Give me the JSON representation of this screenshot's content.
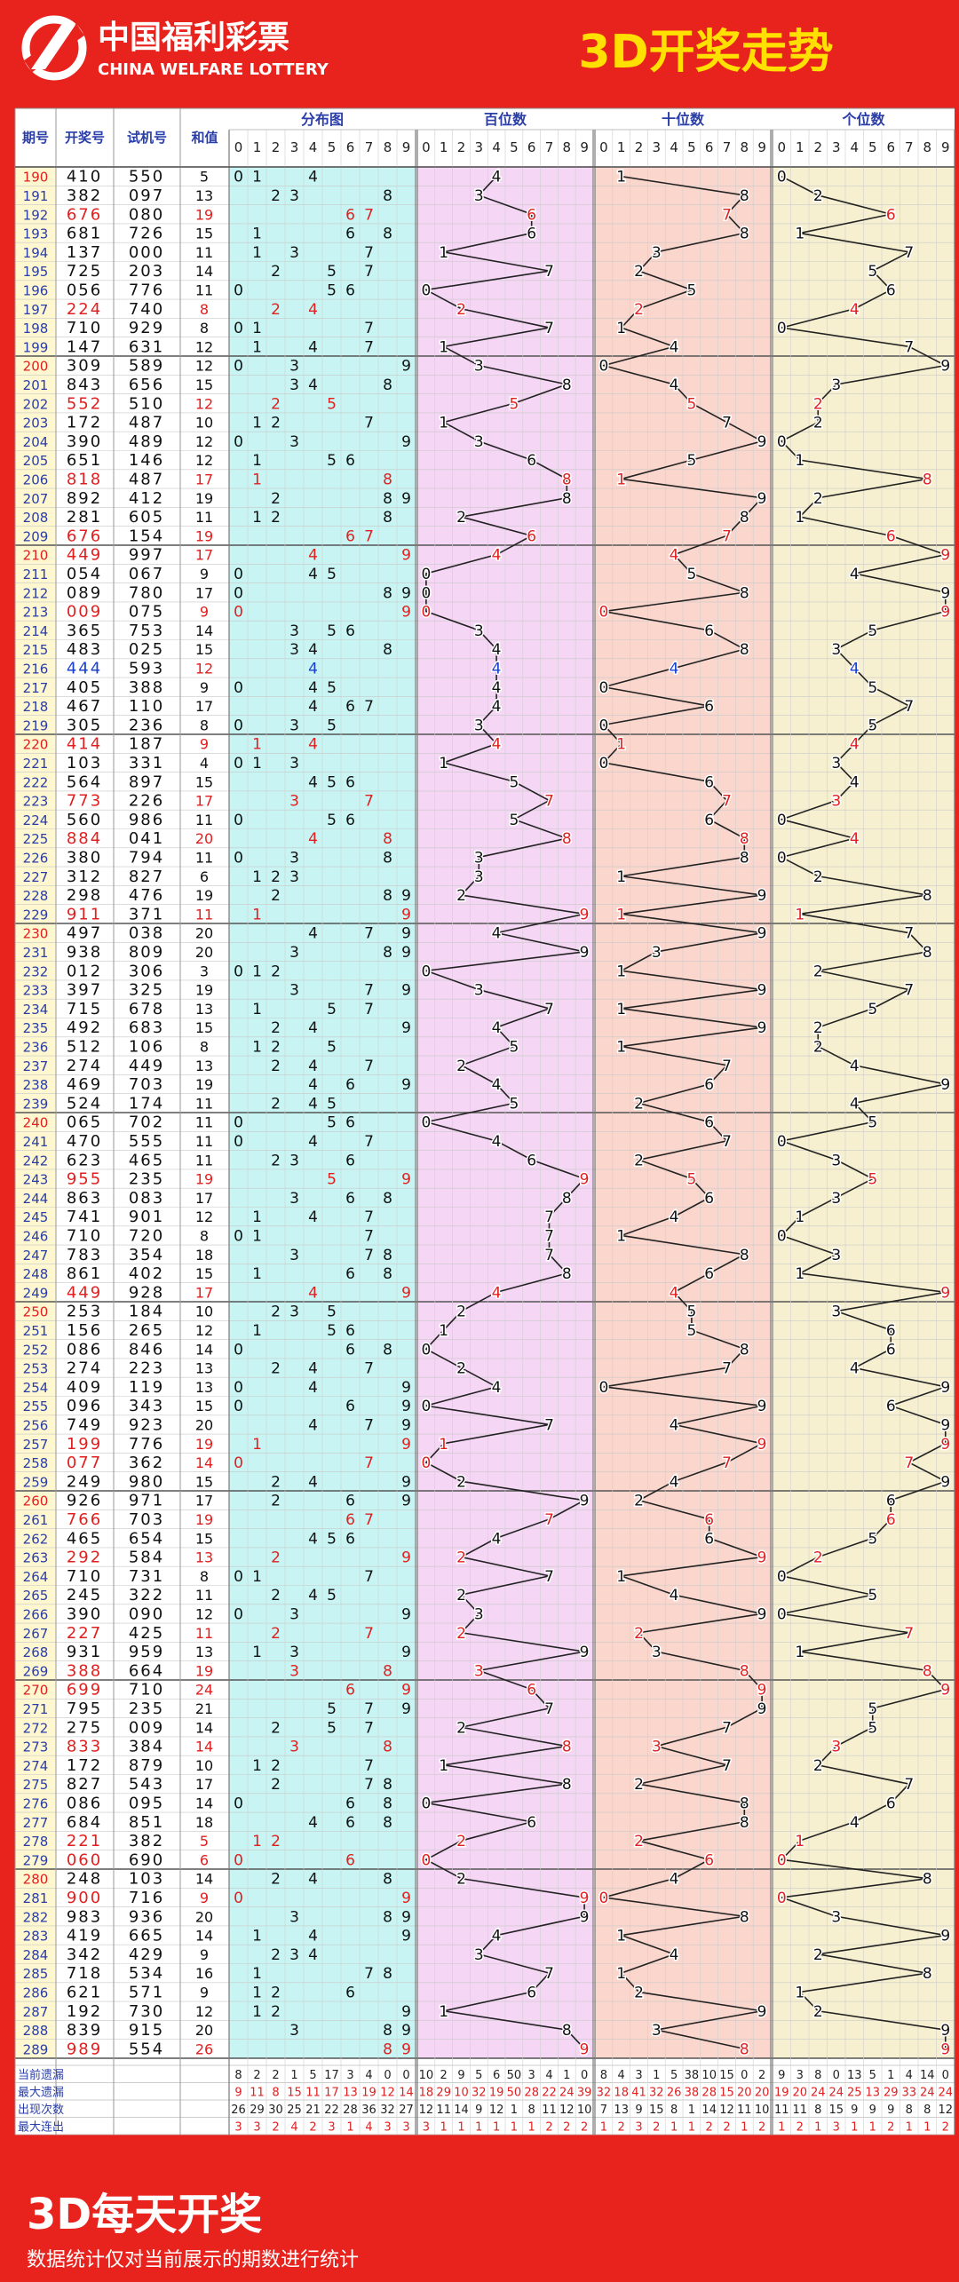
{
  "header": {
    "logo_cn": "中国福利彩票",
    "logo_en": "CHINA WELFARE LOTTERY",
    "title": "3D开奖走势"
  },
  "columns": {
    "period": "期号",
    "draw": "开奖号",
    "test": "试机号",
    "sum": "和值",
    "dist": "分布图",
    "hundreds": "百位数",
    "tens": "十位数",
    "units": "个位数"
  },
  "digits": [
    "0",
    "1",
    "2",
    "3",
    "4",
    "5",
    "6",
    "7",
    "8",
    "9"
  ],
  "colors": {
    "bg_red": "#e8231d",
    "title_yellow": "#ffe000",
    "dist_bg": "#c8f5f3",
    "hundreds_bg": "#f5d6f5",
    "tens_bg": "#fbd6cc",
    "units_bg": "#f7f0d0",
    "left_bg": "#ffffff",
    "repeat_red": "#e02020",
    "blue": "#1a3fcf"
  },
  "chart_data": {
    "type": "table",
    "rows": [
      [
        "190",
        "410",
        "550",
        "5"
      ],
      [
        "191",
        "382",
        "097",
        "13"
      ],
      [
        "192",
        "676",
        "080",
        "19"
      ],
      [
        "193",
        "681",
        "726",
        "15"
      ],
      [
        "194",
        "137",
        "000",
        "11"
      ],
      [
        "195",
        "725",
        "203",
        "14"
      ],
      [
        "196",
        "056",
        "776",
        "11"
      ],
      [
        "197",
        "224",
        "740",
        "8"
      ],
      [
        "198",
        "710",
        "929",
        "8"
      ],
      [
        "199",
        "147",
        "631",
        "12"
      ],
      [
        "200",
        "309",
        "589",
        "12"
      ],
      [
        "201",
        "843",
        "656",
        "15"
      ],
      [
        "202",
        "552",
        "510",
        "12"
      ],
      [
        "203",
        "172",
        "487",
        "10"
      ],
      [
        "204",
        "390",
        "489",
        "12"
      ],
      [
        "205",
        "651",
        "146",
        "12"
      ],
      [
        "206",
        "818",
        "487",
        "17"
      ],
      [
        "207",
        "892",
        "412",
        "19"
      ],
      [
        "208",
        "281",
        "605",
        "11"
      ],
      [
        "209",
        "676",
        "154",
        "19"
      ],
      [
        "210",
        "449",
        "997",
        "17"
      ],
      [
        "211",
        "054",
        "067",
        "9"
      ],
      [
        "212",
        "089",
        "780",
        "17"
      ],
      [
        "213",
        "009",
        "075",
        "9"
      ],
      [
        "214",
        "365",
        "753",
        "14"
      ],
      [
        "215",
        "483",
        "025",
        "15"
      ],
      [
        "216",
        "444",
        "593",
        "12"
      ],
      [
        "217",
        "405",
        "388",
        "9"
      ],
      [
        "218",
        "467",
        "110",
        "17"
      ],
      [
        "219",
        "305",
        "236",
        "8"
      ],
      [
        "220",
        "414",
        "187",
        "9"
      ],
      [
        "221",
        "103",
        "331",
        "4"
      ],
      [
        "222",
        "564",
        "897",
        "15"
      ],
      [
        "223",
        "773",
        "226",
        "17"
      ],
      [
        "224",
        "560",
        "986",
        "11"
      ],
      [
        "225",
        "884",
        "041",
        "20"
      ],
      [
        "226",
        "380",
        "794",
        "11"
      ],
      [
        "227",
        "312",
        "827",
        "6"
      ],
      [
        "228",
        "298",
        "476",
        "19"
      ],
      [
        "229",
        "911",
        "371",
        "11"
      ],
      [
        "230",
        "497",
        "038",
        "20"
      ],
      [
        "231",
        "938",
        "809",
        "20"
      ],
      [
        "232",
        "012",
        "306",
        "3"
      ],
      [
        "233",
        "397",
        "325",
        "19"
      ],
      [
        "234",
        "715",
        "678",
        "13"
      ],
      [
        "235",
        "492",
        "683",
        "15"
      ],
      [
        "236",
        "512",
        "106",
        "8"
      ],
      [
        "237",
        "274",
        "449",
        "13"
      ],
      [
        "238",
        "469",
        "703",
        "19"
      ],
      [
        "239",
        "524",
        "174",
        "11"
      ],
      [
        "240",
        "065",
        "702",
        "11"
      ],
      [
        "241",
        "470",
        "555",
        "11"
      ],
      [
        "242",
        "623",
        "465",
        "11"
      ],
      [
        "243",
        "955",
        "235",
        "19"
      ],
      [
        "244",
        "863",
        "083",
        "17"
      ],
      [
        "245",
        "741",
        "901",
        "12"
      ],
      [
        "246",
        "710",
        "720",
        "8"
      ],
      [
        "247",
        "783",
        "354",
        "18"
      ],
      [
        "248",
        "861",
        "402",
        "15"
      ],
      [
        "249",
        "449",
        "928",
        "17"
      ],
      [
        "250",
        "253",
        "184",
        "10"
      ],
      [
        "251",
        "156",
        "265",
        "12"
      ],
      [
        "252",
        "086",
        "846",
        "14"
      ],
      [
        "253",
        "274",
        "223",
        "13"
      ],
      [
        "254",
        "409",
        "119",
        "13"
      ],
      [
        "255",
        "096",
        "343",
        "15"
      ],
      [
        "256",
        "749",
        "923",
        "20"
      ],
      [
        "257",
        "199",
        "776",
        "19"
      ],
      [
        "258",
        "077",
        "362",
        "14"
      ],
      [
        "259",
        "249",
        "980",
        "15"
      ],
      [
        "260",
        "926",
        "971",
        "17"
      ],
      [
        "261",
        "766",
        "703",
        "19"
      ],
      [
        "262",
        "465",
        "654",
        "15"
      ],
      [
        "263",
        "292",
        "584",
        "13"
      ],
      [
        "264",
        "710",
        "731",
        "8"
      ],
      [
        "265",
        "245",
        "322",
        "11"
      ],
      [
        "266",
        "390",
        "090",
        "12"
      ],
      [
        "267",
        "227",
        "425",
        "11"
      ],
      [
        "268",
        "931",
        "959",
        "13"
      ],
      [
        "269",
        "388",
        "664",
        "19"
      ],
      [
        "270",
        "699",
        "710",
        "24"
      ],
      [
        "271",
        "795",
        "235",
        "21"
      ],
      [
        "272",
        "275",
        "009",
        "14"
      ],
      [
        "273",
        "833",
        "384",
        "14"
      ],
      [
        "274",
        "172",
        "879",
        "10"
      ],
      [
        "275",
        "827",
        "543",
        "17"
      ],
      [
        "276",
        "086",
        "095",
        "14"
      ],
      [
        "277",
        "684",
        "851",
        "18"
      ],
      [
        "278",
        "221",
        "382",
        "5"
      ],
      [
        "279",
        "060",
        "690",
        "6"
      ],
      [
        "280",
        "248",
        "103",
        "14"
      ],
      [
        "281",
        "900",
        "716",
        "9"
      ],
      [
        "282",
        "983",
        "936",
        "20"
      ],
      [
        "283",
        "419",
        "665",
        "14"
      ],
      [
        "284",
        "342",
        "429",
        "9"
      ],
      [
        "285",
        "718",
        "534",
        "16"
      ],
      [
        "286",
        "621",
        "571",
        "9"
      ],
      [
        "287",
        "192",
        "730",
        "12"
      ],
      [
        "288",
        "839",
        "915",
        "20"
      ],
      [
        "289",
        "989",
        "554",
        "26"
      ]
    ],
    "stats": {
      "labels": [
        "当前遗漏",
        "最大遗漏",
        "出现次数",
        "最大连出"
      ],
      "dist": [
        [
          "8",
          "2",
          "2",
          "1",
          "5",
          "17",
          "3",
          "4",
          "0",
          "0"
        ],
        [
          "9",
          "11",
          "8",
          "15",
          "11",
          "17",
          "13",
          "19",
          "12",
          "14"
        ],
        [
          "26",
          "29",
          "30",
          "25",
          "21",
          "22",
          "28",
          "36",
          "32",
          "27"
        ],
        [
          "3",
          "3",
          "2",
          "4",
          "2",
          "3",
          "1",
          "4",
          "3",
          "3"
        ]
      ],
      "hundreds": [
        [
          "10",
          "2",
          "9",
          "5",
          "6",
          "50",
          "3",
          "4",
          "1",
          "0"
        ],
        [
          "18",
          "29",
          "10",
          "32",
          "19",
          "50",
          "28",
          "22",
          "24",
          "39"
        ],
        [
          "12",
          "11",
          "14",
          "9",
          "12",
          "1",
          "8",
          "11",
          "12",
          "10"
        ],
        [
          "3",
          "1",
          "1",
          "1",
          "1",
          "1",
          "1",
          "2",
          "2",
          "2"
        ]
      ],
      "tens": [
        [
          "8",
          "4",
          "3",
          "1",
          "5",
          "38",
          "10",
          "15",
          "0",
          "2"
        ],
        [
          "32",
          "18",
          "41",
          "32",
          "26",
          "38",
          "28",
          "15",
          "20",
          "20"
        ],
        [
          "7",
          "13",
          "9",
          "15",
          "8",
          "1",
          "14",
          "12",
          "11",
          "10"
        ],
        [
          "1",
          "2",
          "3",
          "2",
          "1",
          "1",
          "2",
          "2",
          "1",
          "2"
        ]
      ],
      "units": [
        [
          "9",
          "3",
          "8",
          "0",
          "13",
          "5",
          "1",
          "4",
          "14",
          "0"
        ],
        [
          "19",
          "20",
          "24",
          "24",
          "25",
          "13",
          "29",
          "33",
          "24",
          "24"
        ],
        [
          "11",
          "11",
          "8",
          "15",
          "9",
          "9",
          "9",
          "8",
          "8",
          "12"
        ],
        [
          "1",
          "2",
          "1",
          "3",
          "1",
          "1",
          "2",
          "1",
          "1",
          "2"
        ]
      ]
    }
  },
  "footer": {
    "title": "3D每天开奖",
    "note": "数据统计仅对当前展示的期数进行统计"
  }
}
